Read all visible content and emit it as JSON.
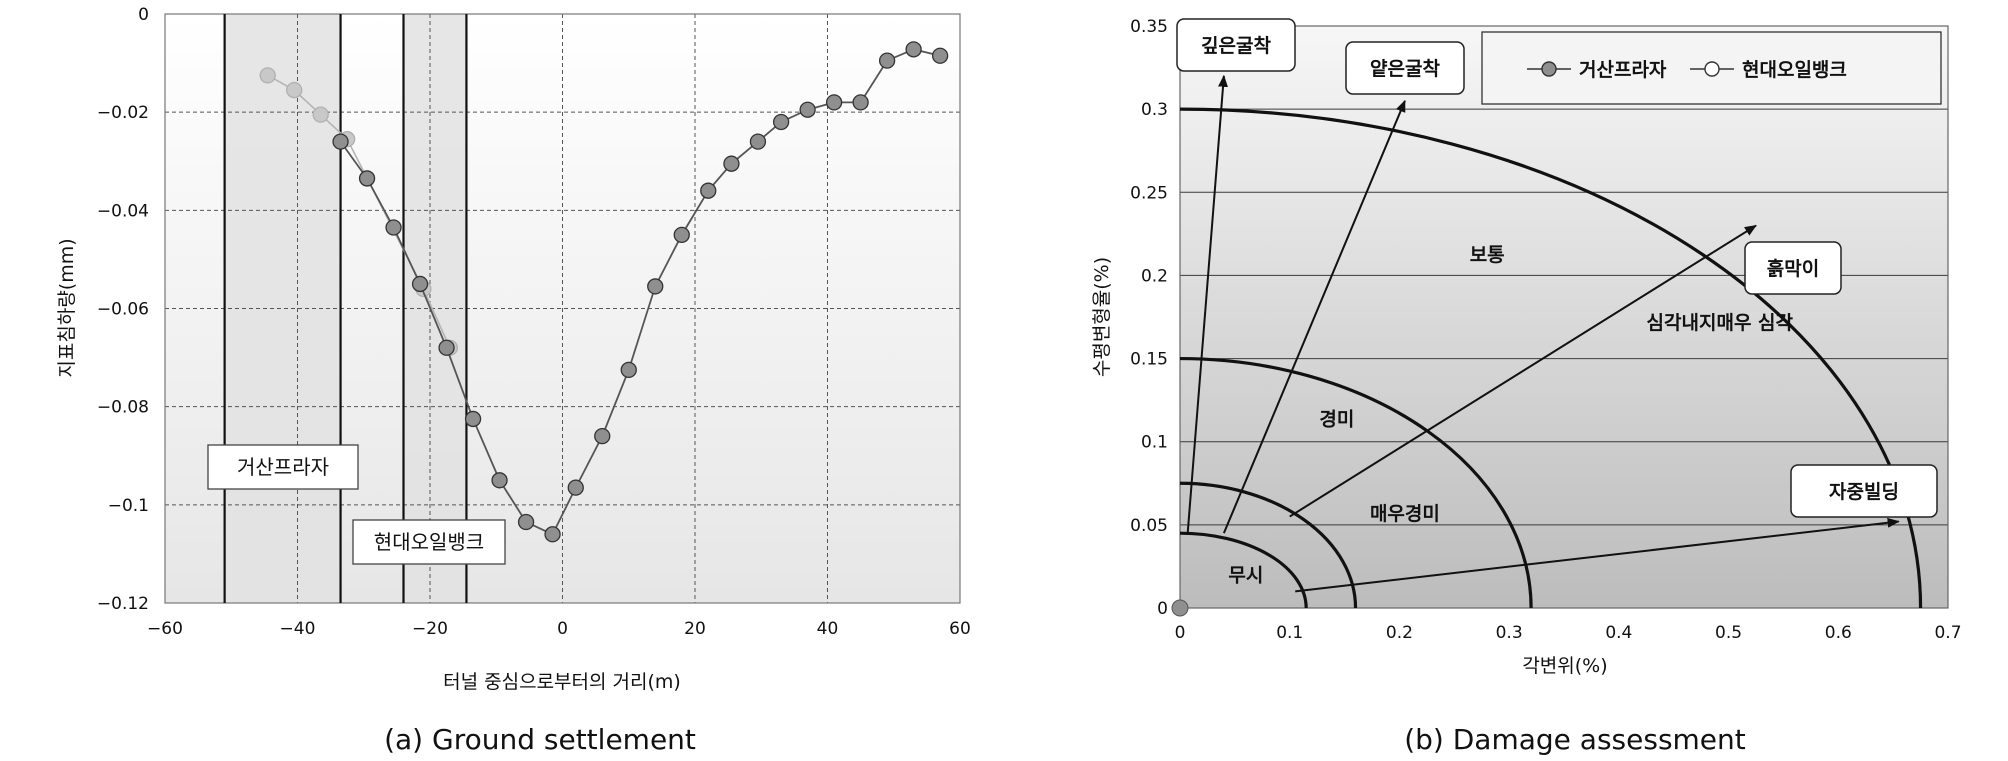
{
  "chart_data": [
    {
      "type": "scatter",
      "caption": "(a) Ground settlement",
      "xlabel": "터널 중심으로부터의 거리(m)",
      "ylabel": "지표침하량(mm)",
      "xlim": [
        -60,
        60
      ],
      "ylim": [
        -0.12,
        0
      ],
      "x_ticks": [
        -60,
        -40,
        -20,
        0,
        20,
        40,
        60
      ],
      "y_ticks": [
        0,
        -0.02,
        -0.04,
        -0.06,
        -0.08,
        -0.1,
        -0.12
      ],
      "x_tick_labels": [
        "−60",
        "−40",
        "−20",
        "0",
        "20",
        "40",
        "60"
      ],
      "y_tick_labels": [
        "0",
        "−0.02",
        "−0.04",
        "−0.06",
        "−0.08",
        "−0.1",
        "−0.12"
      ],
      "grid": true,
      "zones": [
        {
          "label": "거산프라자",
          "x_range": [
            -51,
            -33.5
          ],
          "label_pos": "lower-left"
        },
        {
          "label": "현대오일뱅크",
          "x_range": [
            -24,
            -14.5
          ],
          "label_pos": "bottom"
        }
      ],
      "series": [
        {
          "style": "light",
          "x": [
            -44.5,
            -40.5,
            -36.5,
            -32.5,
            -21,
            -17
          ],
          "y": [
            -0.0125,
            -0.0155,
            -0.0205,
            -0.0255,
            -0.056,
            -0.068
          ]
        },
        {
          "style": "dark",
          "x": [
            -33.5,
            -29.5,
            -25.5,
            -21.5,
            -17.5,
            -13.5,
            -9.5,
            -5.5,
            -1.5,
            2,
            6,
            10,
            14,
            18,
            22,
            25.5,
            29.5,
            33,
            37,
            41,
            45,
            49,
            53,
            57
          ],
          "y": [
            -0.026,
            -0.0335,
            -0.0435,
            -0.055,
            -0.068,
            -0.0825,
            -0.095,
            -0.1035,
            -0.106,
            -0.0965,
            -0.086,
            -0.0725,
            -0.0555,
            -0.045,
            -0.036,
            -0.0305,
            -0.026,
            -0.022,
            -0.0195,
            -0.018,
            -0.018,
            -0.0095,
            -0.0072,
            -0.0085
          ]
        }
      ]
    },
    {
      "type": "scatter",
      "caption": "(b) Damage assessment",
      "xlabel": "각변위(%)",
      "ylabel": "수평변형율(%)",
      "xlim": [
        0,
        0.7
      ],
      "ylim": [
        0,
        0.35
      ],
      "x_ticks": [
        0,
        0.1,
        0.2,
        0.3,
        0.4,
        0.5,
        0.6,
        0.7
      ],
      "y_ticks": [
        0,
        0.05,
        0.1,
        0.15,
        0.2,
        0.25,
        0.3,
        0.35
      ],
      "x_tick_labels": [
        "0",
        "0.1",
        "0.2",
        "0.3",
        "0.4",
        "0.5",
        "0.6",
        "0.7"
      ],
      "y_tick_labels": [
        "0",
        "0.05",
        "0.1",
        "0.15",
        "0.2",
        "0.25",
        "0.3",
        "0.35"
      ],
      "grid": "horizontal",
      "legend": {
        "position": "top-right",
        "entries": [
          {
            "label": "거산프라자",
            "marker": "filled-circle"
          },
          {
            "label": "현대오일뱅크",
            "marker": "open-circle"
          }
        ]
      },
      "zone_boundaries": [
        {
          "name": "무시",
          "x_intercept": 0.115,
          "y_intercept": 0.045
        },
        {
          "name": "매우경미",
          "x_intercept": 0.16,
          "y_intercept": 0.075
        },
        {
          "name": "경미",
          "x_intercept": 0.32,
          "y_intercept": 0.15
        },
        {
          "name": "보통",
          "x_intercept": 0.675,
          "y_intercept": 0.3
        }
      ],
      "zone_labels": [
        "무시",
        "매우경미",
        "경미",
        "보통",
        "심각내지매우 심각"
      ],
      "callouts": [
        {
          "label": "깊은굴착",
          "from": [
            0.007,
            0.045
          ],
          "to": [
            0.04,
            0.32
          ]
        },
        {
          "label": "얕은굴착",
          "from": [
            0.04,
            0.045
          ],
          "to": [
            0.205,
            0.305
          ]
        },
        {
          "label": "흙막이",
          "from": [
            0.1,
            0.055
          ],
          "to": [
            0.525,
            0.23
          ]
        },
        {
          "label": "자중빌딩",
          "from": [
            0.105,
            0.01
          ],
          "to": [
            0.655,
            0.052
          ]
        }
      ],
      "points": [
        {
          "x": 0,
          "y": 0,
          "series": "거산프라자"
        }
      ]
    }
  ],
  "colors": {
    "dark_marker": "#8f8f8f",
    "light_marker": "#c8c8c8",
    "zone_fill": "#e2e2e2",
    "line": "#555555"
  }
}
